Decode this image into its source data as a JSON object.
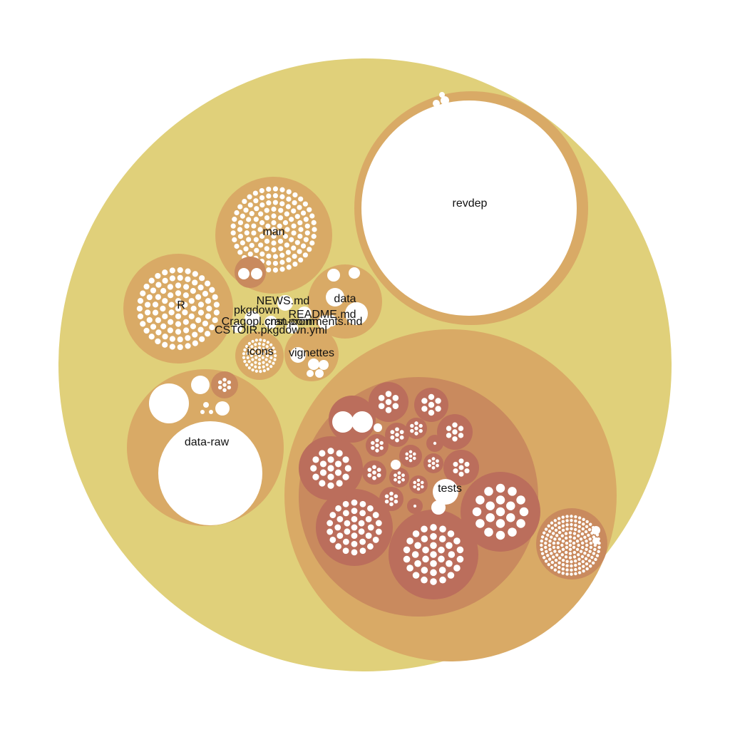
{
  "colors": {
    "root": "#e0d07a",
    "level1": "#d9aa66",
    "level2": "#c98a5e",
    "level3": "#bb6e5c",
    "leaf": "#ffffff"
  },
  "labels": {
    "revdep": "revdep",
    "man": "man",
    "r": "R",
    "data": "data",
    "news_md": "NEWS.md",
    "pkgdown_dir": "pkgdown",
    "readme_md": "README.md",
    "cran_comments_md": "cran-comments.md",
    "cragopl_cnst_prom": "Cragopl.cnst.prom",
    "cstoir_pkgdown_yml": "CSTOIR.pkgdown.yml",
    "icons": "icons",
    "vignettes": "vignettes",
    "data_raw": "data-raw",
    "tests": "tests"
  }
}
